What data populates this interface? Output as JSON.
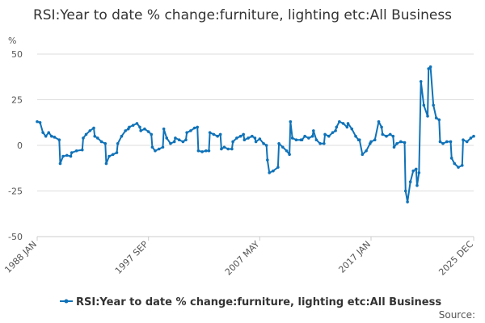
{
  "chart_data": {
    "type": "line",
    "title": "RSI:Year to date % change:furniture, lighting etc:All Business",
    "ylabel": "%",
    "ylim": [
      -50,
      50
    ],
    "yticks": [
      50,
      25,
      0,
      -25,
      -50
    ],
    "xticks": [
      "1988 JAN",
      "1997 SEP",
      "2007 MAY",
      "2017 JAN",
      "2025 DEC"
    ],
    "grid": true,
    "legend_position": "bottom",
    "source_label": "Source:",
    "series": [
      {
        "name": "RSI:Year to date % change:furniture, lighting etc:All Business",
        "color": "#0f72b8",
        "points": [
          [
            "1988-01",
            13
          ],
          [
            "1988-04",
            12.5
          ],
          [
            "1988-07",
            7
          ],
          [
            "1988-10",
            5
          ],
          [
            "1989-01",
            7
          ],
          [
            "1989-04",
            5
          ],
          [
            "1989-07",
            4.5
          ],
          [
            "1989-12",
            3
          ],
          [
            "1990-01",
            -10
          ],
          [
            "1990-04",
            -6
          ],
          [
            "1990-08",
            -5.5
          ],
          [
            "1990-12",
            -6
          ],
          [
            "1991-01",
            -4
          ],
          [
            "1991-06",
            -3
          ],
          [
            "1991-12",
            -2.5
          ],
          [
            "1992-01",
            4
          ],
          [
            "1992-04",
            6
          ],
          [
            "1992-08",
            8
          ],
          [
            "1992-12",
            9.5
          ],
          [
            "1993-01",
            5
          ],
          [
            "1993-04",
            4
          ],
          [
            "1993-08",
            2
          ],
          [
            "1993-12",
            1
          ],
          [
            "1994-01",
            -10
          ],
          [
            "1994-04",
            -6
          ],
          [
            "1994-08",
            -5
          ],
          [
            "1994-12",
            -4
          ],
          [
            "1995-01",
            1
          ],
          [
            "1995-05",
            5
          ],
          [
            "1995-09",
            8
          ],
          [
            "1995-12",
            9
          ],
          [
            "1996-01",
            10
          ],
          [
            "1996-05",
            11
          ],
          [
            "1996-09",
            12
          ],
          [
            "1996-12",
            10
          ],
          [
            "1997-01",
            8
          ],
          [
            "1997-05",
            9
          ],
          [
            "1997-09",
            7.5
          ],
          [
            "1997-12",
            6
          ],
          [
            "1998-01",
            -1
          ],
          [
            "1998-04",
            -3
          ],
          [
            "1998-08",
            -2
          ],
          [
            "1998-12",
            -1
          ],
          [
            "1999-01",
            9
          ],
          [
            "1999-04",
            4
          ],
          [
            "1999-08",
            1
          ],
          [
            "1999-12",
            2
          ],
          [
            "2000-01",
            4
          ],
          [
            "2000-05",
            3
          ],
          [
            "2000-09",
            2
          ],
          [
            "2000-12",
            3
          ],
          [
            "2001-01",
            7
          ],
          [
            "2001-05",
            8
          ],
          [
            "2001-09",
            9.5
          ],
          [
            "2001-12",
            10
          ],
          [
            "2002-01",
            -3
          ],
          [
            "2002-05",
            -3.5
          ],
          [
            "2002-09",
            -3
          ],
          [
            "2002-12",
            -3
          ],
          [
            "2003-01",
            7
          ],
          [
            "2003-05",
            6
          ],
          [
            "2003-09",
            5
          ],
          [
            "2003-12",
            6
          ],
          [
            "2004-01",
            -2
          ],
          [
            "2004-04",
            -1
          ],
          [
            "2004-08",
            -2
          ],
          [
            "2004-12",
            -2
          ],
          [
            "2005-01",
            2
          ],
          [
            "2005-05",
            4
          ],
          [
            "2005-09",
            5
          ],
          [
            "2005-12",
            6
          ],
          [
            "2006-01",
            3
          ],
          [
            "2006-05",
            4
          ],
          [
            "2006-09",
            5
          ],
          [
            "2006-12",
            4
          ],
          [
            "2007-01",
            2
          ],
          [
            "2007-05",
            3.5
          ],
          [
            "2007-09",
            1
          ],
          [
            "2007-12",
            0
          ],
          [
            "2008-01",
            -8
          ],
          [
            "2008-03",
            -15
          ],
          [
            "2008-07",
            -14
          ],
          [
            "2008-12",
            -12
          ],
          [
            "2009-01",
            1
          ],
          [
            "2009-05",
            -1
          ],
          [
            "2009-09",
            -3
          ],
          [
            "2009-12",
            -5
          ],
          [
            "2010-01",
            13
          ],
          [
            "2010-03",
            4
          ],
          [
            "2010-07",
            3
          ],
          [
            "2010-12",
            3
          ],
          [
            "2011-01",
            3
          ],
          [
            "2011-04",
            5
          ],
          [
            "2011-08",
            4
          ],
          [
            "2011-12",
            5
          ],
          [
            "2012-01",
            8
          ],
          [
            "2012-04",
            3
          ],
          [
            "2012-08",
            1
          ],
          [
            "2012-12",
            1
          ],
          [
            "2013-01",
            6
          ],
          [
            "2013-05",
            5
          ],
          [
            "2013-09",
            7
          ],
          [
            "2013-12",
            8
          ],
          [
            "2014-01",
            10
          ],
          [
            "2014-04",
            13
          ],
          [
            "2014-08",
            12
          ],
          [
            "2014-12",
            10
          ],
          [
            "2015-01",
            12
          ],
          [
            "2015-05",
            9
          ],
          [
            "2015-09",
            5
          ],
          [
            "2015-12",
            3
          ],
          [
            "2016-01",
            3
          ],
          [
            "2016-04",
            -5
          ],
          [
            "2016-08",
            -3
          ],
          [
            "2016-12",
            1
          ],
          [
            "2017-01",
            2
          ],
          [
            "2017-05",
            3
          ],
          [
            "2017-09",
            13
          ],
          [
            "2017-12",
            10
          ],
          [
            "2018-01",
            6
          ],
          [
            "2018-05",
            5
          ],
          [
            "2018-09",
            6
          ],
          [
            "2018-12",
            5
          ],
          [
            "2019-01",
            -1
          ],
          [
            "2019-04",
            1
          ],
          [
            "2019-08",
            2
          ],
          [
            "2019-12",
            1.5
          ],
          [
            "2020-01",
            -25
          ],
          [
            "2020-03",
            -31
          ],
          [
            "2020-06",
            -20
          ],
          [
            "2020-09",
            -14
          ],
          [
            "2020-12",
            -13
          ],
          [
            "2021-01",
            -22
          ],
          [
            "2021-03",
            -15
          ],
          [
            "2021-05",
            35
          ],
          [
            "2021-08",
            22
          ],
          [
            "2021-12",
            16
          ],
          [
            "2022-01",
            42
          ],
          [
            "2022-03",
            43
          ],
          [
            "2022-06",
            22
          ],
          [
            "2022-09",
            15
          ],
          [
            "2022-12",
            14
          ],
          [
            "2023-01",
            2
          ],
          [
            "2023-04",
            1
          ],
          [
            "2023-08",
            2
          ],
          [
            "2023-12",
            2
          ],
          [
            "2024-01",
            -7
          ],
          [
            "2024-04",
            -10
          ],
          [
            "2024-08",
            -12
          ],
          [
            "2024-12",
            -11
          ],
          [
            "2025-01",
            3
          ],
          [
            "2025-05",
            2
          ],
          [
            "2025-09",
            4
          ],
          [
            "2025-12",
            5
          ]
        ]
      }
    ]
  }
}
